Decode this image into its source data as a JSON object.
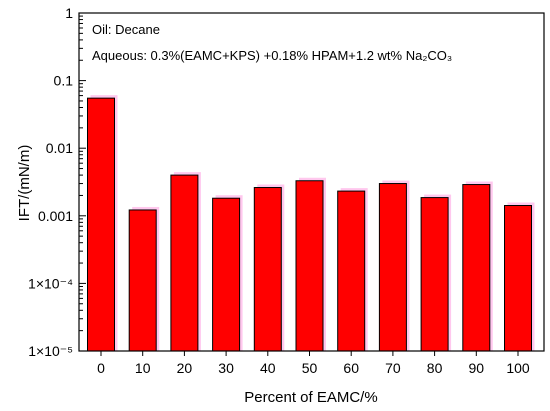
{
  "chart_data": {
    "type": "bar",
    "y_scale": "log",
    "ylim": [
      1e-05,
      1
    ],
    "ylabel": "IFT/(mN/m)",
    "xlabel": "Percent of EAMC/%",
    "categories": [
      "0",
      "10",
      "20",
      "30",
      "40",
      "50",
      "60",
      "70",
      "80",
      "90",
      "100"
    ],
    "values": [
      0.055,
      0.00122,
      0.004,
      0.00182,
      0.00262,
      0.0033,
      0.00232,
      0.003,
      0.00186,
      0.0029,
      0.00142
    ],
    "y_ticks": [
      {
        "value": 1,
        "label": "1"
      },
      {
        "value": 0.1,
        "label": "0.1"
      },
      {
        "value": 0.01,
        "label": "0.01"
      },
      {
        "value": 0.001,
        "label": "0.001"
      },
      {
        "value": 0.0001,
        "label": "1×10⁻⁴"
      },
      {
        "value": 1e-05,
        "label": "1×10⁻⁵"
      }
    ],
    "annotations": [
      "Oil: Decane",
      "Aqueous: 0.3%(EAMC+KPS) +0.18% HPAM+1.2 wt% Na₂CO₃"
    ],
    "colors": {
      "bar_fill": "#ff0000",
      "bar_stroke": "#000000",
      "bar_shadow": "#ffc8ee",
      "axis": "#000000"
    }
  }
}
